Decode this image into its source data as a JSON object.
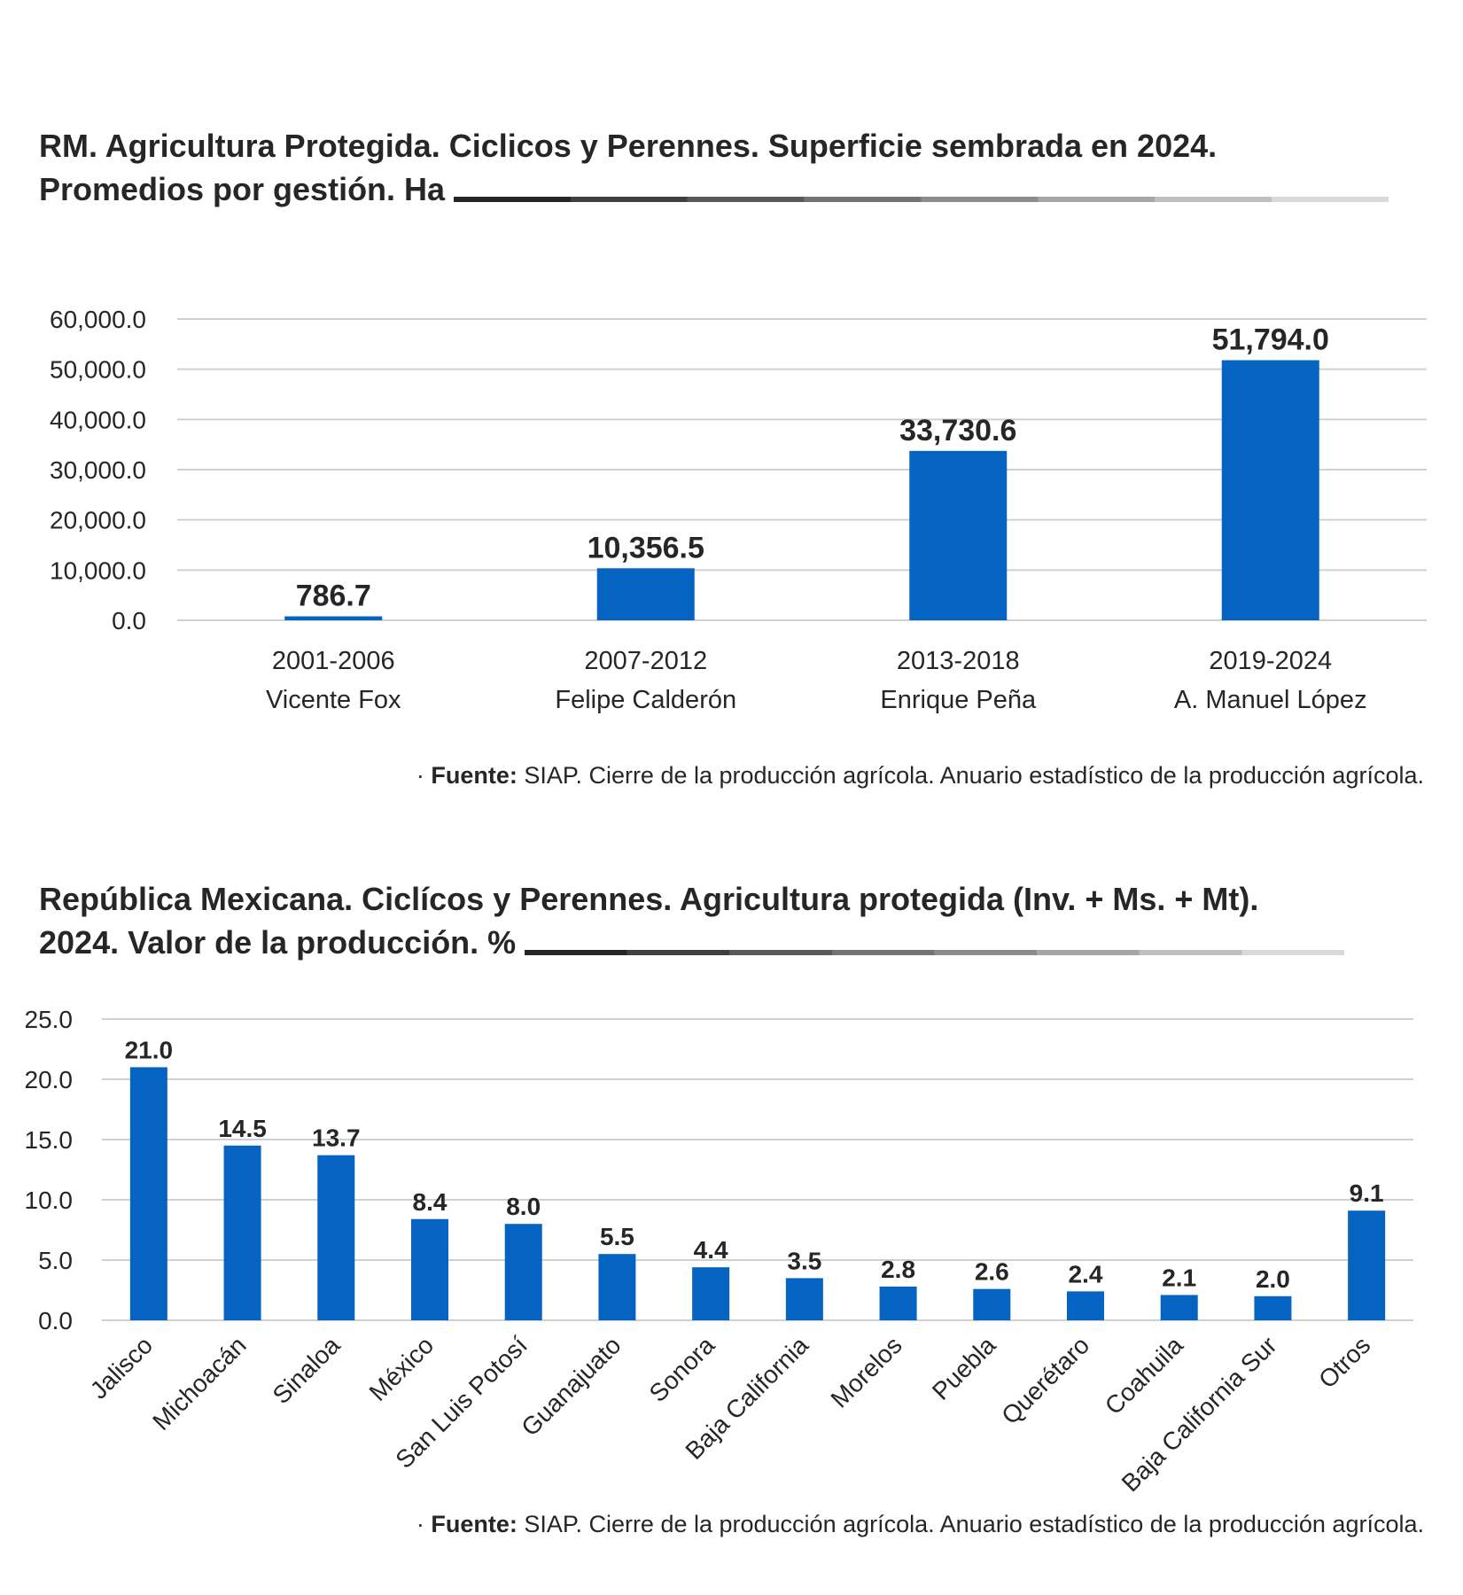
{
  "chart1": {
    "title_line1": "RM. Agricultura Protegida. Ciclicos y Perennes. Superficie sembrada en 2024.",
    "title_line2": "Promedios por gestión. Ha",
    "source_label": "Fuente:",
    "source_text": "SIAP. Cierre de la producción agrícola. Anuario estadístico de la producción agrícola.",
    "bullet": "·"
  },
  "chart2": {
    "title_line1": "República Mexicana. Ciclícos y Perennes.  Agricultura protegida (Inv. + Ms. + Mt).",
    "title_line2": "2024. Valor de la producción. %",
    "source_label": "Fuente:",
    "source_text": "SIAP. Cierre de la producción agrícola. Anuario estadístico de la producción agrícola.",
    "bullet": "·"
  },
  "colors": {
    "bar": "#0563c1",
    "grid": "#d0d0d0",
    "text": "#262626",
    "rule_gradient": [
      "#262626",
      "#404040",
      "#595959",
      "#737373",
      "#8c8c8c",
      "#a6a6a6",
      "#bfbfbf",
      "#d9d9d9"
    ]
  },
  "chart_data": [
    {
      "type": "bar",
      "title": "RM. Agricultura Protegida. Ciclicos y Perennes. Superficie sembrada en 2024. Promedios por gestión. Ha",
      "categories": [
        [
          "2001-2006",
          "Vicente Fox"
        ],
        [
          "2007-2012",
          "Felipe Calderón"
        ],
        [
          "2013-2018",
          "Enrique Peña"
        ],
        [
          "2019-2024",
          "A. Manuel López"
        ]
      ],
      "values": [
        786.7,
        10356.5,
        33730.6,
        51794.0
      ],
      "value_labels": [
        "786.7",
        "10,356.5",
        "33,730.6",
        "51,794.0"
      ],
      "yticks": [
        "0.0",
        "10,000.0",
        "20,000.0",
        "30,000.0",
        "40,000.0",
        "50,000.0",
        "60,000.0"
      ],
      "ylim": [
        0,
        60000
      ],
      "grid": true,
      "legend": "none"
    },
    {
      "type": "bar",
      "title": "República Mexicana. Ciclícos y Perennes. Agricultura protegida (Inv. + Ms. + Mt). 2024. Valor de la producción. %",
      "categories": [
        "Jalisco",
        "Michoacán",
        "Sinaloa",
        "México",
        "San Luis Potosí",
        "Guanajuato",
        "Sonora",
        "Baja California",
        "Morelos",
        "Puebla",
        "Querétaro",
        "Coahuila",
        "Baja California Sur",
        "Otros"
      ],
      "values": [
        21.0,
        14.5,
        13.7,
        8.4,
        8.0,
        5.5,
        4.4,
        3.5,
        2.8,
        2.6,
        2.4,
        2.1,
        2.0,
        9.1
      ],
      "value_labels": [
        "21.0",
        "14.5",
        "13.7",
        "8.4",
        "8.0",
        "5.5",
        "4.4",
        "3.5",
        "2.8",
        "2.6",
        "2.4",
        "2.1",
        "2.0",
        "9.1"
      ],
      "yticks": [
        "0.0",
        "5.0",
        "10.0",
        "15.0",
        "20.0",
        "25.0"
      ],
      "ylim": [
        0,
        25
      ],
      "grid": true,
      "legend": "none"
    }
  ]
}
